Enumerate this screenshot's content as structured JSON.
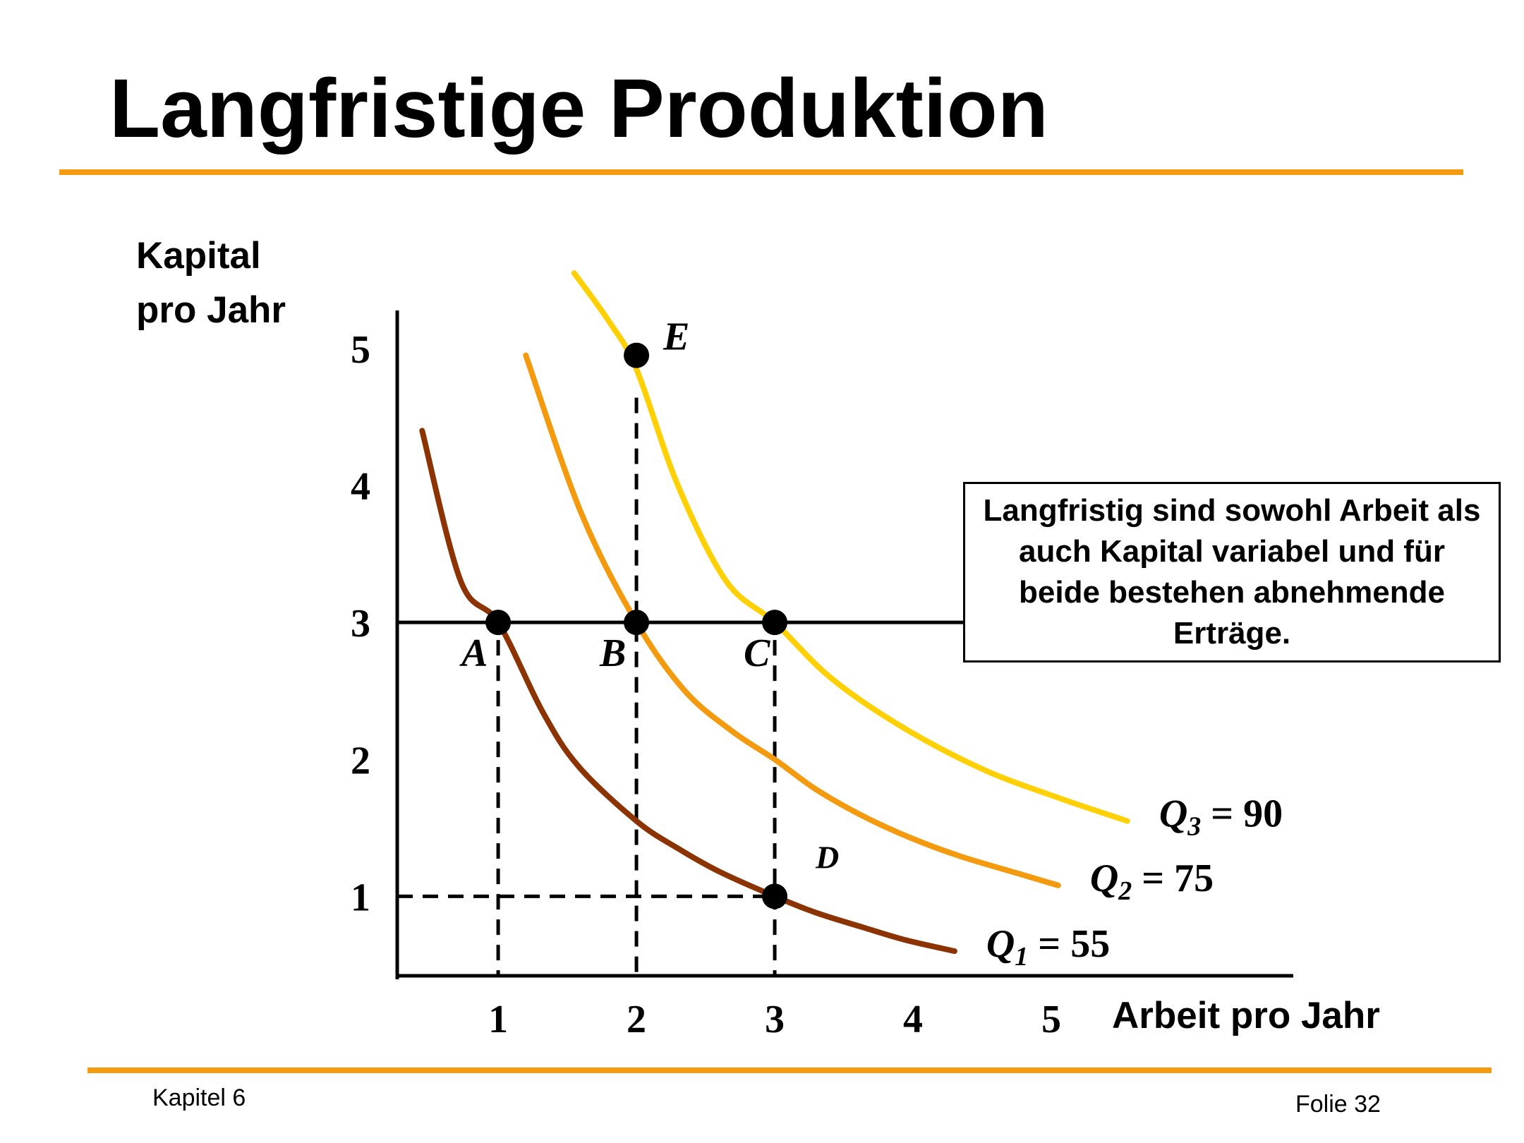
{
  "slide": {
    "title": "Langfristige Produktion",
    "note": "Langfristig sind sowohl Arbeit als auch Kapital variabel und für beide bestehen abnehmende Erträge.",
    "footer_left": "Kapitel 6",
    "footer_right": "Folie 32"
  },
  "chart_data": {
    "type": "line",
    "ylabel": [
      "Kapital",
      "pro Jahr"
    ],
    "xlabel": "Arbeit pro Jahr",
    "x_ticks": [
      "1",
      "2",
      "3",
      "4",
      "5"
    ],
    "y_ticks": [
      "1",
      "2",
      "3",
      "4",
      "5"
    ],
    "xlim": [
      0.27,
      6.75
    ],
    "ylim": [
      0.42,
      5.52
    ],
    "grid": false,
    "series": [
      {
        "name": "Q1 = 55",
        "label_main": "Q",
        "label_sub": "1",
        "label_rest": " = 55",
        "color": "#8b3303",
        "x": [
          0.45,
          0.73,
          1.0,
          1.32,
          1.58,
          2.0,
          2.3,
          2.6,
          3.0,
          3.3,
          3.65,
          3.95,
          4.3
        ],
        "y": [
          4.4,
          3.3,
          3.0,
          2.35,
          1.95,
          1.55,
          1.35,
          1.18,
          1.0,
          0.88,
          0.77,
          0.68,
          0.6
        ]
      },
      {
        "name": "Q2 = 75",
        "label_main": "Q",
        "label_sub": "2",
        "label_rest": " = 75",
        "color": "#f39a0e",
        "x": [
          1.2,
          1.6,
          2.0,
          2.35,
          2.7,
          3.0,
          3.3,
          3.65,
          4.0,
          4.35,
          4.75,
          5.05
        ],
        "y": [
          4.95,
          3.8,
          3.0,
          2.5,
          2.2,
          2.0,
          1.78,
          1.58,
          1.42,
          1.29,
          1.17,
          1.08
        ]
      },
      {
        "name": "Q3 = 90",
        "label_main": "Q",
        "label_sub": "3",
        "label_rest": " = 90",
        "color": "#ffd003",
        "x": [
          1.55,
          1.8,
          2.0,
          2.3,
          2.65,
          3.0,
          3.4,
          3.9,
          4.5,
          5.05,
          5.55
        ],
        "y": [
          5.55,
          5.2,
          4.85,
          4.0,
          3.3,
          3.0,
          2.6,
          2.25,
          1.93,
          1.72,
          1.55
        ]
      }
    ],
    "points": [
      {
        "label": "A",
        "x": 1,
        "y": 3
      },
      {
        "label": "B",
        "x": 2,
        "y": 3
      },
      {
        "label": "C",
        "x": 3,
        "y": 3
      },
      {
        "label": "D",
        "x": 3,
        "y": 1
      },
      {
        "label": "E",
        "x": 2,
        "y": 4.95
      }
    ],
    "horizontal_line": {
      "y": 3,
      "x_end": 4.72
    }
  }
}
